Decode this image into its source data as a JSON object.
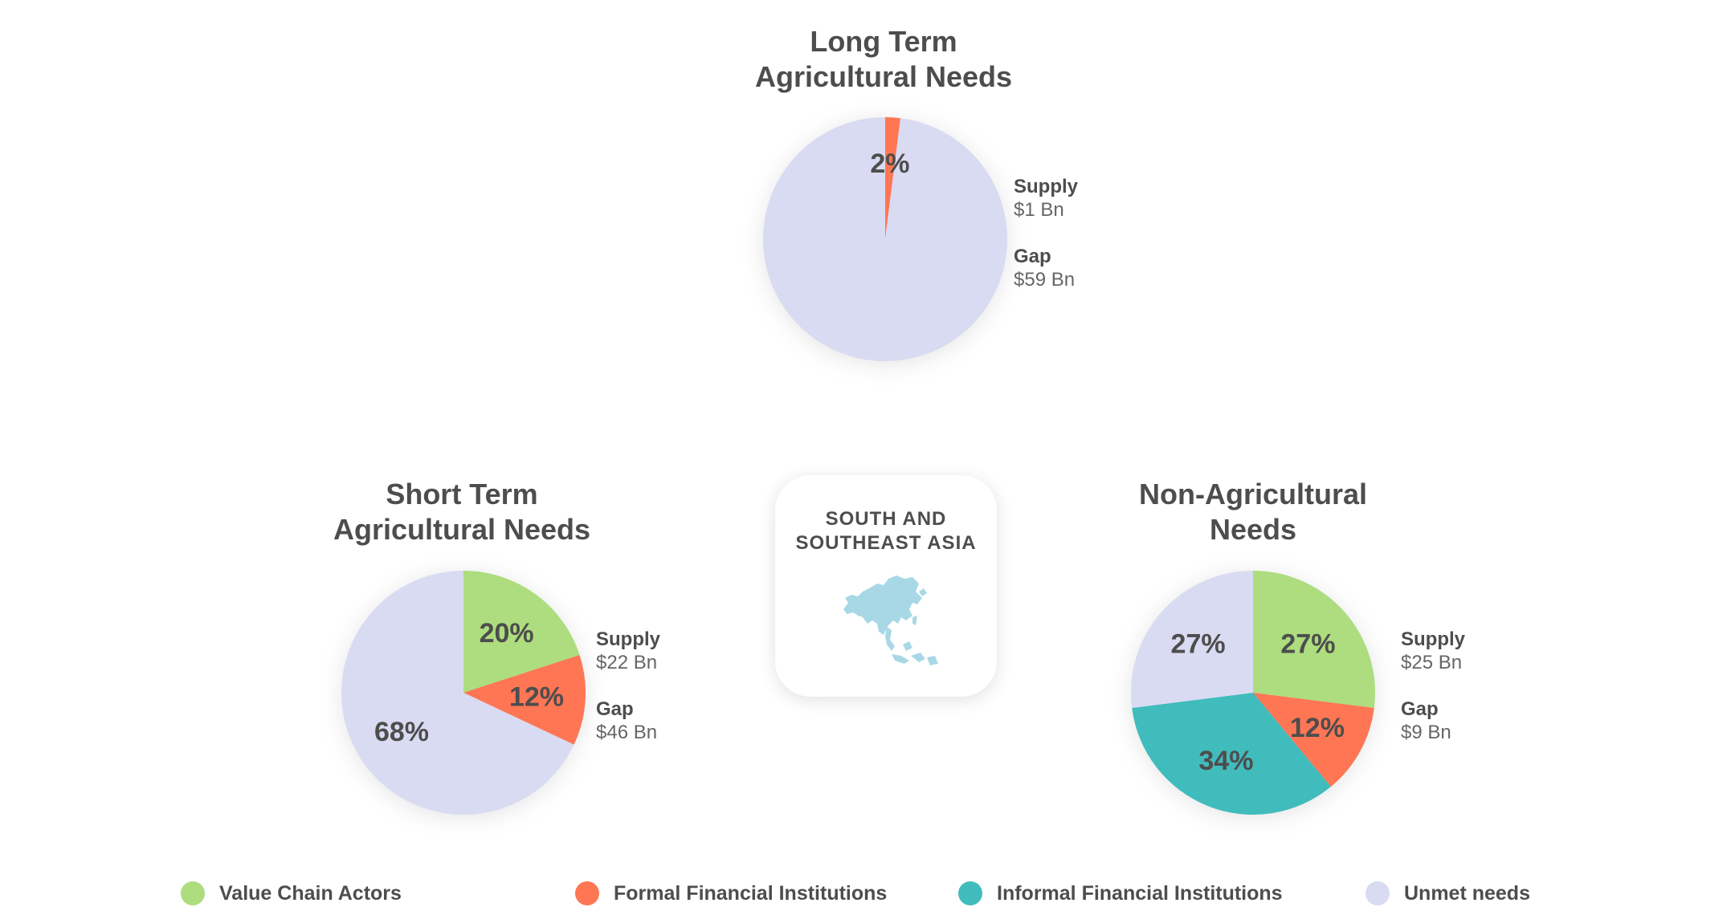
{
  "colors": {
    "value_chain": "#addd7e",
    "formal": "#ff7654",
    "informal": "#41bcbd",
    "unmet": "#d9dbf2"
  },
  "region": {
    "line1": "SOUTH AND",
    "line2": "SOUTHEAST ASIA",
    "map_icon": "asia-map-icon"
  },
  "chart_data": [
    {
      "type": "pie",
      "title_line1": "Long Term",
      "title_line2": "Agricultural Needs",
      "slices": [
        {
          "name": "Formal Financial Institutions",
          "value": 2,
          "label": "2%",
          "color": "#ff7654"
        },
        {
          "name": "Unmet needs",
          "value": 98,
          "label": "",
          "color": "#d9dbf2"
        }
      ],
      "supply_label": "Supply",
      "supply_value": "$1 Bn",
      "gap_label": "Gap",
      "gap_value": "$59 Bn"
    },
    {
      "type": "pie",
      "title_line1": "Short Term",
      "title_line2": "Agricultural Needs",
      "slices": [
        {
          "name": "Value Chain Actors",
          "value": 20,
          "label": "20%",
          "color": "#addd7e"
        },
        {
          "name": "Formal Financial Institutions",
          "value": 12,
          "label": "12%",
          "color": "#ff7654"
        },
        {
          "name": "Unmet needs",
          "value": 68,
          "label": "68%",
          "color": "#d9dbf2"
        }
      ],
      "supply_label": "Supply",
      "supply_value": "$22 Bn",
      "gap_label": "Gap",
      "gap_value": "$46 Bn"
    },
    {
      "type": "pie",
      "title_line1": "Non-Agricultural",
      "title_line2": "Needs",
      "slices": [
        {
          "name": "Value Chain Actors",
          "value": 27,
          "label": "27%",
          "color": "#addd7e"
        },
        {
          "name": "Formal Financial Institutions",
          "value": 12,
          "label": "12%",
          "color": "#ff7654"
        },
        {
          "name": "Informal Financial Institutions",
          "value": 34,
          "label": "34%",
          "color": "#41bcbd"
        },
        {
          "name": "Unmet needs",
          "value": 27,
          "label": "27%",
          "color": "#d9dbf2"
        }
      ],
      "supply_label": "Supply",
      "supply_value": "$25 Bn",
      "gap_label": "Gap",
      "gap_value": "$9 Bn"
    }
  ],
  "legend": [
    {
      "label": "Value Chain Actors",
      "color": "#addd7e"
    },
    {
      "label": "Formal Financial Institutions",
      "color": "#ff7654"
    },
    {
      "label": "Informal Financial Institutions",
      "color": "#41bcbd"
    },
    {
      "label": "Unmet needs",
      "color": "#d9dbf2"
    }
  ]
}
